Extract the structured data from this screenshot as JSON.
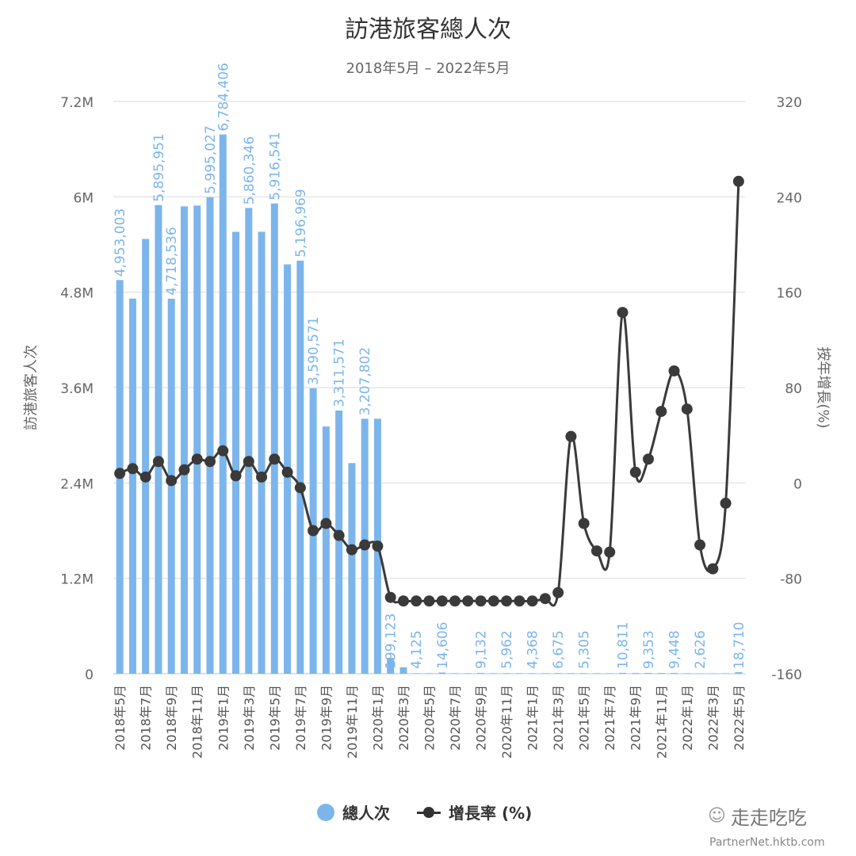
{
  "header": {
    "title": "訪港旅客總人次",
    "subtitle": "2018年5月 – 2022年5月"
  },
  "axes": {
    "left_label": "訪港旅客人次",
    "right_label": "按年增長(%)",
    "left_ticks": [
      "0",
      "1.2M",
      "2.4M",
      "3.6M",
      "4.8M",
      "6M",
      "7.2M"
    ],
    "right_ticks": [
      "-160",
      "-80",
      "0",
      "80",
      "160",
      "240",
      "320"
    ]
  },
  "legend": {
    "bar_label": "總人次",
    "line_label": "增長率 (%)"
  },
  "watermark": {
    "name": "走走吃吃",
    "source": "PartnerNet.hktb.com"
  },
  "colors": {
    "bar": "#7cb5ec",
    "line": "#3a3a3a",
    "grid": "#e6e6e6",
    "label": "#7cb5ec"
  },
  "chart_data": {
    "type": "bar+line",
    "title": "訪港旅客總人次",
    "subtitle": "2018年5月 – 2022年5月",
    "xlabel": "",
    "ylabel": "訪港旅客人次",
    "y2label": "按年增長(%)",
    "ylim": [
      0,
      7200000
    ],
    "y2lim": [
      -160,
      320
    ],
    "grid": true,
    "legend_position": "bottom",
    "categories": [
      "2018年5月",
      "2018年6月",
      "2018年7月",
      "2018年8月",
      "2018年9月",
      "2018年10月",
      "2018年11月",
      "2018年12月",
      "2019年1月",
      "2019年2月",
      "2019年3月",
      "2019年4月",
      "2019年5月",
      "2019年6月",
      "2019年7月",
      "2019年8月",
      "2019年9月",
      "2019年10月",
      "2019年11月",
      "2019年12月",
      "2020年1月",
      "2020年2月",
      "2020年3月",
      "2020年4月",
      "2020年5月",
      "2020年6月",
      "2020年7月",
      "2020年8月",
      "2020年9月",
      "2020年10月",
      "2020年11月",
      "2020年12月",
      "2021年1月",
      "2021年2月",
      "2021年3月",
      "2021年4月",
      "2021年5月",
      "2021年6月",
      "2021年7月",
      "2021年8月",
      "2021年9月",
      "2021年10月",
      "2021年11月",
      "2021年12月",
      "2022年1月",
      "2022年2月",
      "2022年3月",
      "2022年4月",
      "2022年5月"
    ],
    "tick_labels": [
      "2018年5月",
      "2018年7月",
      "2018年9月",
      "2018年11月",
      "2019年1月",
      "2019年3月",
      "2019年5月",
      "2019年7月",
      "2019年9月",
      "2019年11月",
      "2020年1月",
      "2020年3月",
      "2020年5月",
      "2020年7月",
      "2020年9月",
      "2020年11月",
      "2021年1月",
      "2021年3月",
      "2021年5月",
      "2021年7月",
      "2021年9月",
      "2021年11月",
      "2022年1月",
      "2022年3月",
      "2022年5月"
    ],
    "series": [
      {
        "name": "總人次",
        "type": "bar",
        "axis": "left",
        "values": [
          4953003,
          4720000,
          5470000,
          5895951,
          4718536,
          5880000,
          5890000,
          5995027,
          6784406,
          5560000,
          5860346,
          5560000,
          5916541,
          5150000,
          5196969,
          3590571,
          3110000,
          3311571,
          2650000,
          3207802,
          3207802,
          199123,
          80000,
          4125,
          4500,
          14606,
          5000,
          4200,
          9132,
          5200,
          5962,
          4800,
          4368,
          5000,
          6675,
          5800,
          5305,
          4900,
          4700,
          10811,
          8200,
          9353,
          9100,
          9448,
          4200,
          2626,
          2000,
          3800,
          18710
        ],
        "labels": {
          "0": "4,953,003",
          "3": "5,895,951",
          "4": "4,718,536",
          "7": "5,995,027",
          "8": "6,784,406",
          "10": "5,860,346",
          "12": "5,916,541",
          "14": "5,196,969",
          "15": "3,590,571",
          "17": "3,311,571",
          "19": "3,207,802",
          "21": "199,123",
          "23": "4,125",
          "25": "14,606",
          "28": "9,132",
          "30": "5,962",
          "32": "4,368",
          "34": "6,675",
          "36": "5,305",
          "39": "10,811",
          "41": "9,353",
          "43": "9,448",
          "45": "2,626",
          "48": "18,710"
        }
      },
      {
        "name": "增長率 (%)",
        "type": "line",
        "axis": "right",
        "values": [
          8,
          12,
          5,
          18,
          2,
          11,
          20,
          18,
          27,
          6,
          18,
          5,
          20,
          9,
          -4,
          -40,
          -34,
          -44,
          -56,
          -52,
          -53,
          -96,
          -99,
          -99,
          -99,
          -99,
          -99,
          -99,
          -99,
          -99,
          -99,
          -99,
          -99,
          -97,
          -92,
          39,
          -34,
          -57,
          -58,
          143,
          9,
          20,
          60,
          94,
          62,
          -52,
          -72,
          -17,
          253
        ]
      }
    ]
  }
}
